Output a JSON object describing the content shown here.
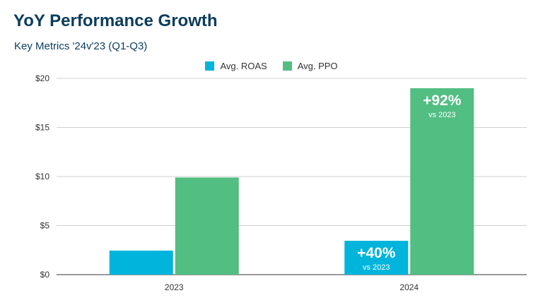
{
  "colors": {
    "roas": "#00b4dc",
    "ppo": "#52be82",
    "title": "#0b3c5d"
  },
  "chart_data": {
    "type": "bar",
    "title": "YoY Performance Growth",
    "subtitle": "Key Metrics '24v'23 (Q1-Q3)",
    "categories": [
      "2023",
      "2024"
    ],
    "series": [
      {
        "name": "Avg. ROAS",
        "values": [
          2.45,
          3.45
        ]
      },
      {
        "name": "Avg. PPO",
        "values": [
          9.9,
          19.0
        ]
      }
    ],
    "ylim": [
      0,
      20
    ],
    "yticks": [
      0,
      5,
      10,
      15,
      20
    ],
    "ytick_labels": [
      "$0",
      "$5",
      "$10",
      "$15",
      "$20"
    ],
    "grid": true,
    "legend_position": "top-center",
    "annotations": [
      {
        "series": 0,
        "category": 1,
        "value": "+40%",
        "note": "vs 2023"
      },
      {
        "series": 1,
        "category": 1,
        "value": "+92%",
        "note": "vs 2023"
      }
    ]
  }
}
